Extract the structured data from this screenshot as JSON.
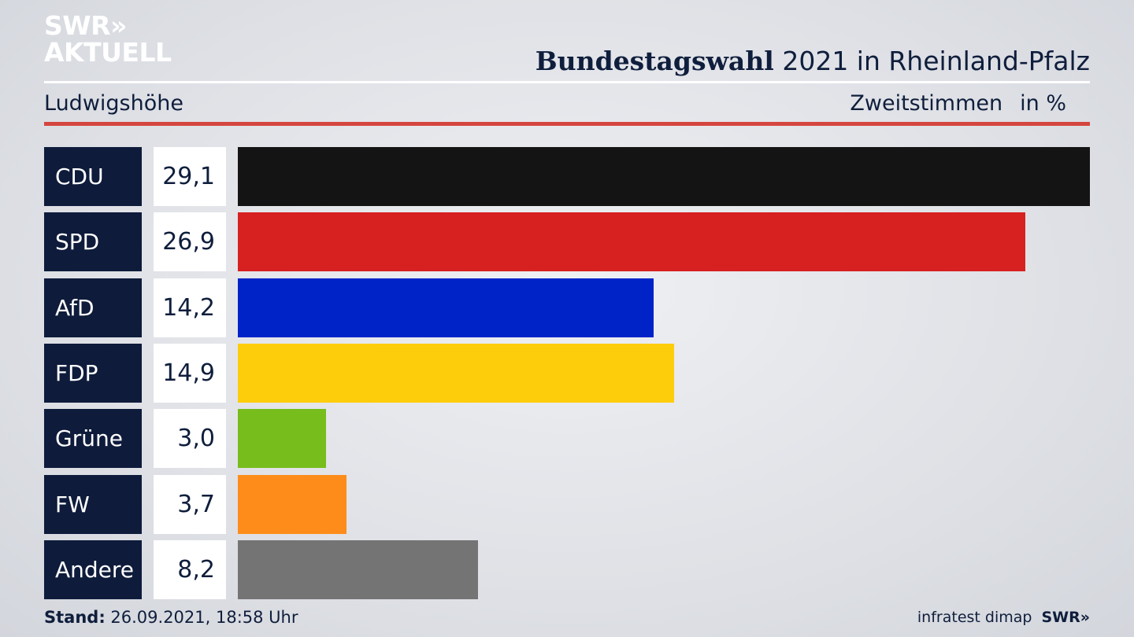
{
  "brand": {
    "line1": "SWR»",
    "line2": "AKTUELL"
  },
  "header": {
    "title_bold": "Bundestagswahl",
    "title_rest": " 2021 in Rheinland-Pfalz"
  },
  "subheader": {
    "region": "Ludwigshöhe",
    "metric": "Zweitstimmen",
    "unit": "in %"
  },
  "chart_data": {
    "type": "bar",
    "orientation": "horizontal",
    "title": "Bundestagswahl 2021 in Rheinland-Pfalz",
    "subtitle": "Ludwigshöhe",
    "ylabel": "Zweitstimmen",
    "unit": "in %",
    "categories": [
      "CDU",
      "SPD",
      "AfD",
      "FDP",
      "Grüne",
      "FW",
      "Andere"
    ],
    "values": [
      29.1,
      26.9,
      14.2,
      14.9,
      3.0,
      3.7,
      8.2
    ],
    "labels": [
      "29,1",
      "26,9",
      "14,2",
      "14,9",
      "3,0",
      "3,7",
      "8,2"
    ],
    "colors": [
      "#141414",
      "#d72020",
      "#0023c8",
      "#fdcd0b",
      "#77bd1b",
      "#fe8c1a",
      "#747474"
    ],
    "xlim": [
      0,
      29.1
    ],
    "grid": false,
    "legend": "none"
  },
  "footer": {
    "stand_label": "Stand:",
    "stand_value": " 26.09.2021, 18:58 Uhr",
    "source": "infratest dimap",
    "source_brand": "SWR»"
  }
}
